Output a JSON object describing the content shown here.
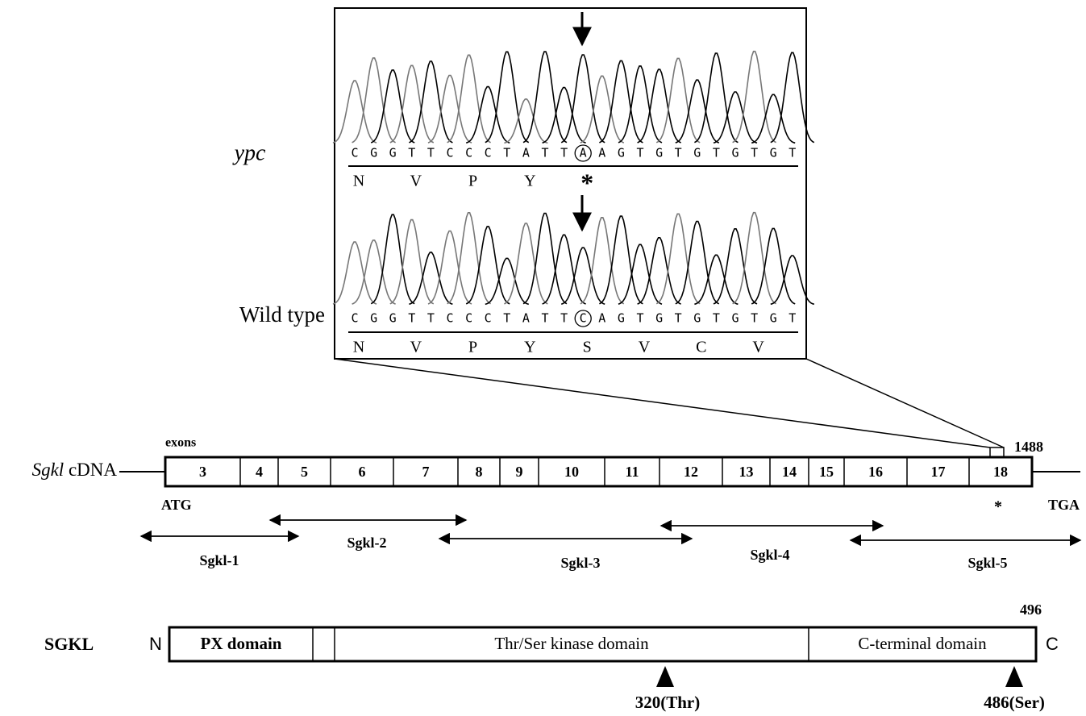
{
  "inset": {
    "ypc": {
      "label": "ypc",
      "bases": [
        "C",
        "G",
        "G",
        "T",
        "T",
        "C",
        "C",
        "C",
        "T",
        "A",
        "T",
        "T",
        "A",
        "A",
        "G",
        "T",
        "G",
        "T",
        "G",
        "T",
        "G",
        "T",
        "G",
        "T"
      ],
      "amino_acids": [
        "N",
        "V",
        "P",
        "Y",
        "*"
      ]
    },
    "wild_type": {
      "label": "Wild type",
      "bases": [
        "C",
        "G",
        "G",
        "T",
        "T",
        "C",
        "C",
        "C",
        "T",
        "A",
        "T",
        "T",
        "C",
        "A",
        "G",
        "T",
        "G",
        "T",
        "G",
        "T",
        "G",
        "T",
        "G",
        "T"
      ],
      "amino_acids": [
        "N",
        "V",
        "P",
        "Y",
        "S",
        "V",
        "C",
        "V"
      ]
    }
  },
  "cdna": {
    "name": "Sgkl",
    "suffix": "cDNA",
    "exons_label": "exons",
    "length": "1488",
    "exons": [
      "3",
      "4",
      "5",
      "6",
      "7",
      "8",
      "9",
      "10",
      "11",
      "12",
      "13",
      "14",
      "15",
      "16",
      "17",
      "18"
    ],
    "start": "ATG",
    "mutation": "*",
    "stop": "TGA"
  },
  "amplicons": [
    "Sgkl-1",
    "Sgkl-2",
    "Sgkl-3",
    "Sgkl-4",
    "Sgkl-5"
  ],
  "protein": {
    "name": "SGKL",
    "n_term": "N",
    "c_term": "C",
    "length": "496",
    "domains": [
      "PX domain",
      "Thr/Ser kinase domain",
      "C-terminal domain"
    ],
    "sites": [
      "320(Thr)",
      "486(Ser)"
    ]
  }
}
